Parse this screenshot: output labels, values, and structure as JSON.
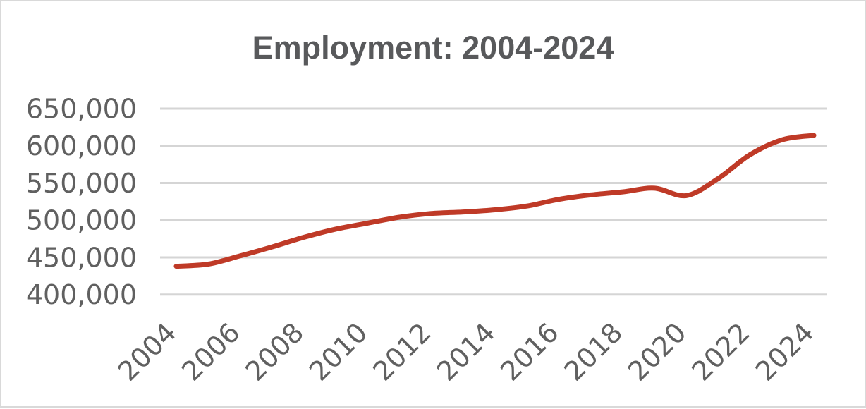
{
  "window": {
    "background": "#ffffff",
    "border_color": "#d9d9d9"
  },
  "chart_data": {
    "type": "line",
    "title": "Employment: 2004-2024",
    "x": [
      2004,
      2005,
      2006,
      2007,
      2008,
      2009,
      2010,
      2011,
      2012,
      2013,
      2014,
      2015,
      2016,
      2017,
      2018,
      2019,
      2020,
      2021,
      2022,
      2023,
      2024
    ],
    "series": [
      {
        "name": "Employment",
        "color": "#bf3a27",
        "values": [
          438000,
          441000,
          452000,
          464000,
          477000,
          488000,
          496000,
          504000,
          509000,
          511000,
          514000,
          519000,
          528000,
          534000,
          538000,
          543000,
          533000,
          556000,
          588000,
          608000,
          614000
        ]
      }
    ],
    "xlabel": "",
    "ylabel": "",
    "ylim": [
      400000,
      650000
    ],
    "yticks": [
      400000,
      450000,
      500000,
      550000,
      600000,
      650000
    ],
    "ytick_labels": [
      "400,000",
      "450,000",
      "500,000",
      "550,000",
      "600,000",
      "650,000"
    ],
    "xticks": [
      2004,
      2006,
      2008,
      2010,
      2012,
      2014,
      2016,
      2018,
      2020,
      2022,
      2024
    ],
    "xtick_labels": [
      "2004",
      "2006",
      "2008",
      "2010",
      "2012",
      "2014",
      "2016",
      "2018",
      "2020",
      "2022",
      "2024"
    ],
    "xtick_rotation_deg": -45,
    "grid": "horizontal",
    "legend": "none",
    "gridline_color": "#d5d5d5",
    "title_color": "#58595b",
    "tick_label_color": "#606060"
  }
}
